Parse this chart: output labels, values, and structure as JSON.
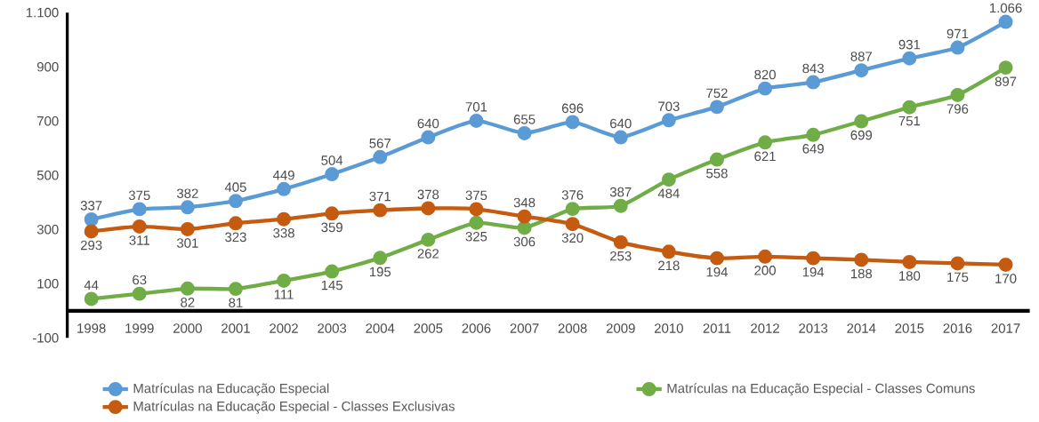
{
  "chart_data": {
    "type": "line",
    "categories": [
      "1998",
      "1999",
      "2000",
      "2001",
      "2002",
      "2003",
      "2004",
      "2005",
      "2006",
      "2007",
      "2008",
      "2009",
      "2010",
      "2011",
      "2012",
      "2013",
      "2014",
      "2015",
      "2016",
      "2017"
    ],
    "series": [
      {
        "name": "Matrículas na Educação Especial",
        "color": "#5b9bd5",
        "values": [
          337,
          375,
          382,
          405,
          449,
          504,
          567,
          640,
          701,
          655,
          696,
          640,
          703,
          752,
          820,
          843,
          887,
          931,
          971,
          1066
        ],
        "value_labels": [
          "337",
          "375",
          "382",
          "405",
          "449",
          "504",
          "567",
          "640",
          "701",
          "655",
          "696",
          "640",
          "703",
          "752",
          "820",
          "843",
          "887",
          "931",
          "971",
          "1.066"
        ]
      },
      {
        "name": "Matrículas na Educação Especial - Classes Comuns",
        "color": "#70ad47",
        "values": [
          44,
          63,
          82,
          81,
          111,
          145,
          195,
          262,
          325,
          306,
          376,
          387,
          484,
          558,
          621,
          649,
          699,
          751,
          796,
          897
        ],
        "value_labels": [
          "44",
          "63",
          "82",
          "81",
          "111",
          "145",
          "195",
          "262",
          "325",
          "306",
          "376",
          "387",
          "484",
          "558",
          "621",
          "649",
          "699",
          "751",
          "796",
          "897"
        ]
      },
      {
        "name": "Matrículas na Educação Especial - Classes Exclusivas",
        "color": "#c55a11",
        "values": [
          293,
          311,
          301,
          323,
          338,
          359,
          371,
          378,
          375,
          348,
          320,
          253,
          218,
          194,
          200,
          194,
          188,
          180,
          175,
          170
        ],
        "value_labels": [
          "293",
          "311",
          "301",
          "323",
          "338",
          "359",
          "371",
          "378",
          "375",
          "348",
          "320",
          "253",
          "218",
          "194",
          "200",
          "194",
          "188",
          "180",
          "175",
          "170"
        ]
      }
    ],
    "ylim": [
      -100,
      1100
    ],
    "yticks": [
      -100,
      100,
      300,
      500,
      700,
      900,
      {
        "value": 1100,
        "label": "1.100"
      }
    ],
    "marker": "circle",
    "line_style": "solid",
    "grid": false,
    "legend": "bottom"
  }
}
